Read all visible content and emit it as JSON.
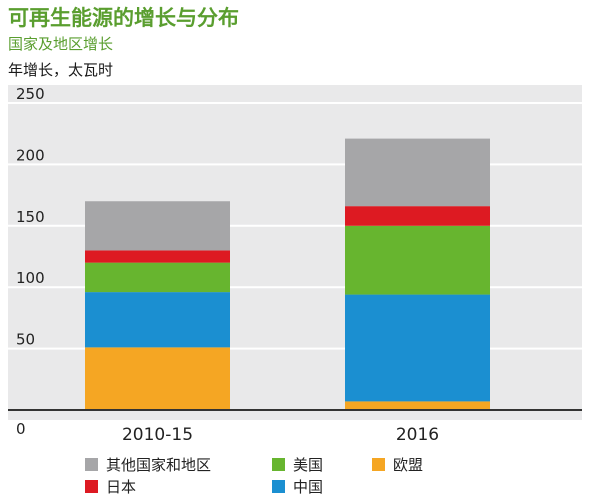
{
  "title": "可再生能源的增长与分布",
  "subtitle": "国家及地区增长",
  "unit_label": "年增长，太瓦时",
  "chart_data": {
    "type": "bar",
    "stacked": true,
    "title": "可再生能源的增长与分布",
    "subtitle": "国家及地区增长",
    "ylabel": "年增长，太瓦时",
    "xlabel": "",
    "categories": [
      "2010-15",
      "2016"
    ],
    "ylim": [
      0,
      250
    ],
    "yticks": [
      0,
      50,
      100,
      150,
      200,
      250
    ],
    "grid": true,
    "legend_position": "bottom",
    "series": [
      {
        "name": "欧盟",
        "color": "#f5a623",
        "values": [
          51,
          7
        ]
      },
      {
        "name": "中国",
        "color": "#1b8fd1",
        "values": [
          45,
          87
        ]
      },
      {
        "name": "美国",
        "color": "#67b52f",
        "values": [
          24,
          56
        ]
      },
      {
        "name": "日本",
        "color": "#dd1a22",
        "values": [
          10,
          16
        ]
      },
      {
        "name": "其他国家和地区",
        "color": "#a6a6a8",
        "values": [
          40,
          55
        ]
      }
    ]
  },
  "legend": [
    {
      "label": "其他国家和地区",
      "color": "#a6a6a8"
    },
    {
      "label": "美国",
      "color": "#67b52f"
    },
    {
      "label": "欧盟",
      "color": "#f5a623"
    },
    {
      "label": "日本",
      "color": "#dd1a22"
    },
    {
      "label": "中国",
      "color": "#1b8fd1"
    }
  ]
}
